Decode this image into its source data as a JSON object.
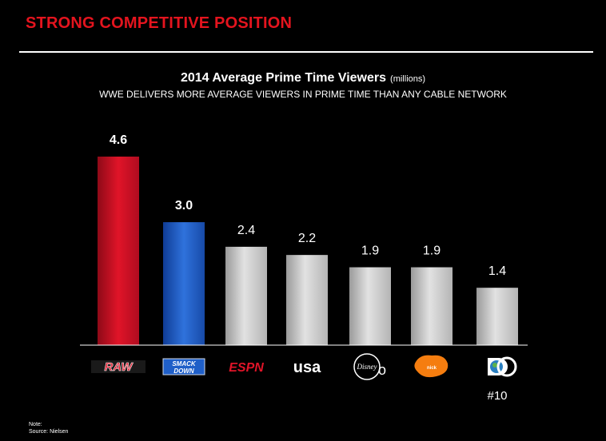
{
  "slide": {
    "title": "STRONG COMPETITIVE POSITION"
  },
  "colors": {
    "title_red": "#e4141e",
    "raw_bar": "#d0102a",
    "smackdown_bar": "#1f5fc8",
    "gray_bar": "#c8c8c8",
    "background": "#000000"
  },
  "footnote": {
    "note": "Note:",
    "source": "Source: Nielsen"
  },
  "chart_data": {
    "type": "bar",
    "title": "2014 Average Prime Time Viewers",
    "title_units": "(millions)",
    "subtitle": "WWE DELIVERS MORE AVERAGE VIEWERS IN PRIME TIME THAN ANY CABLE NETWORK",
    "categories": [
      "RAW",
      "SMACK DOWN",
      "ESPN",
      "usa",
      "Disney Channel",
      "nickelodeon",
      "Discovery"
    ],
    "category_icons": [
      "raw-logo-icon",
      "smackdown-logo-icon",
      "espn-logo-icon",
      "usa-logo-icon",
      "disney-channel-logo-icon",
      "nickelodeon-logo-icon",
      "discovery-logo-icon"
    ],
    "values": [
      4.6,
      3.0,
      2.4,
      2.2,
      1.9,
      1.9,
      1.4
    ],
    "value_labels": [
      "4.6",
      "3.0",
      "2.4",
      "2.2",
      "1.9",
      "1.9",
      "1.4"
    ],
    "rank_annotation": {
      "category_index": 6,
      "text": "#10"
    },
    "bar_colors": [
      "#d0102a",
      "#1f5fc8",
      "#c8c8c8",
      "#c8c8c8",
      "#c8c8c8",
      "#c8c8c8",
      "#c8c8c8"
    ],
    "ylim": [
      0,
      5
    ],
    "grid": false,
    "legend": "none"
  }
}
